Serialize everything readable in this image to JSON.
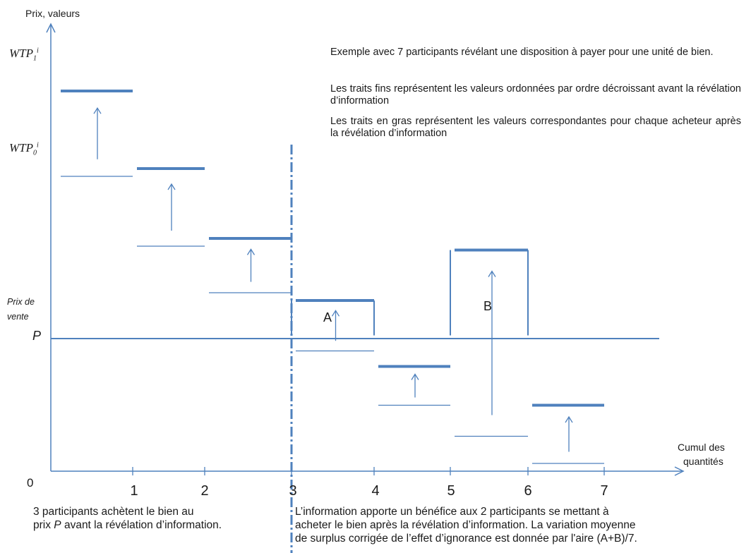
{
  "labels": {
    "y_axis": "Prix, valeurs",
    "x_axis_line1": "Cumul des",
    "x_axis_line2": "quantités",
    "origin": "0",
    "wtp1_base": "WTP",
    "wtp1_sub": "1",
    "wtp1_sup": "i",
    "wtp0_base": "WTP",
    "wtp0_sub": "0",
    "wtp0_sup": "i",
    "prix_de": "Prix de",
    "vente": "vente",
    "p": "P",
    "area_a": "A",
    "area_b": "B"
  },
  "x_ticks": [
    "1",
    "2",
    "3",
    "4",
    "5",
    "6",
    "7"
  ],
  "notes": [
    "Exemple avec 7 participants révélant une disposition à payer pour une unité de bien.",
    "Les traits fins représentent les valeurs ordonnées par ordre décroissant avant la révélation d’information",
    "Les traits en gras représentent les valeurs correspondantes pour chaque acheteur après la révélation d’information"
  ],
  "bottom_left_line1": "3 participants achètent le bien au",
  "bottom_left_line2_pre": "prix ",
  "bottom_left_line2_p": "P",
  "bottom_left_line2_post": " avant la révélation d’information.",
  "bottom_right_line1": "L’information apporte un bénéfice aux 2 participants se mettant à",
  "bottom_right_line2": "acheter  le bien après la révélation d’information. La variation moyenne",
  "bottom_right_line3": "de surplus corrigée de l’effet d’ignorance est donnée par l'aire (A+B)/7.",
  "colors": {
    "line": "#4f81bd",
    "text": "#1a1a1a"
  },
  "participants": [
    {
      "id": 1,
      "x_from": 0,
      "x_to": 1,
      "wtp_before": 7.6,
      "wtp_after": 9.8
    },
    {
      "id": 2,
      "x_from": 1,
      "x_to": 2,
      "wtp_before": 5.8,
      "wtp_after": 7.8
    },
    {
      "id": 3,
      "x_from": 2,
      "x_to": 3,
      "wtp_before": 4.6,
      "wtp_after": 6.0
    },
    {
      "id": 4,
      "x_from": 3,
      "x_to": 4,
      "wtp_before": 3.1,
      "wtp_after": 4.4
    },
    {
      "id": 5,
      "x_from": 4,
      "x_to": 5,
      "wtp_before": 1.7,
      "wtp_after": 2.7
    },
    {
      "id": 6,
      "x_from": 5,
      "x_to": 6,
      "wtp_before": 0.9,
      "wtp_after": 5.7
    },
    {
      "id": 7,
      "x_from": 6,
      "x_to": 7,
      "wtp_before": 0.2,
      "wtp_after": 1.7
    }
  ],
  "price_p": 3.5,
  "buyers_before": 3
}
